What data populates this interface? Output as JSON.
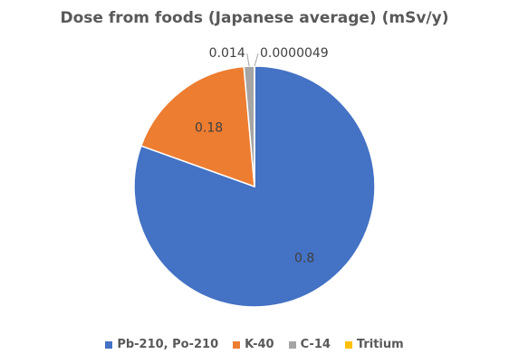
{
  "chart_data": {
    "type": "pie",
    "title": "Dose from foods (Japanese average) (mSv/y)",
    "categories": [
      "Pb-210, Po-210",
      "K-40",
      "C-14",
      "Tritium"
    ],
    "values": [
      0.8,
      0.18,
      0.014,
      4.9e-06
    ],
    "value_labels": [
      "0.8",
      "0.18",
      "0.014",
      "0.0000049"
    ],
    "colors": [
      "#4472C4",
      "#ED7D31",
      "#A5A5A5",
      "#FFC000"
    ],
    "start_angle_deg": 0,
    "direction": "clockwise",
    "legend_position": "bottom"
  }
}
